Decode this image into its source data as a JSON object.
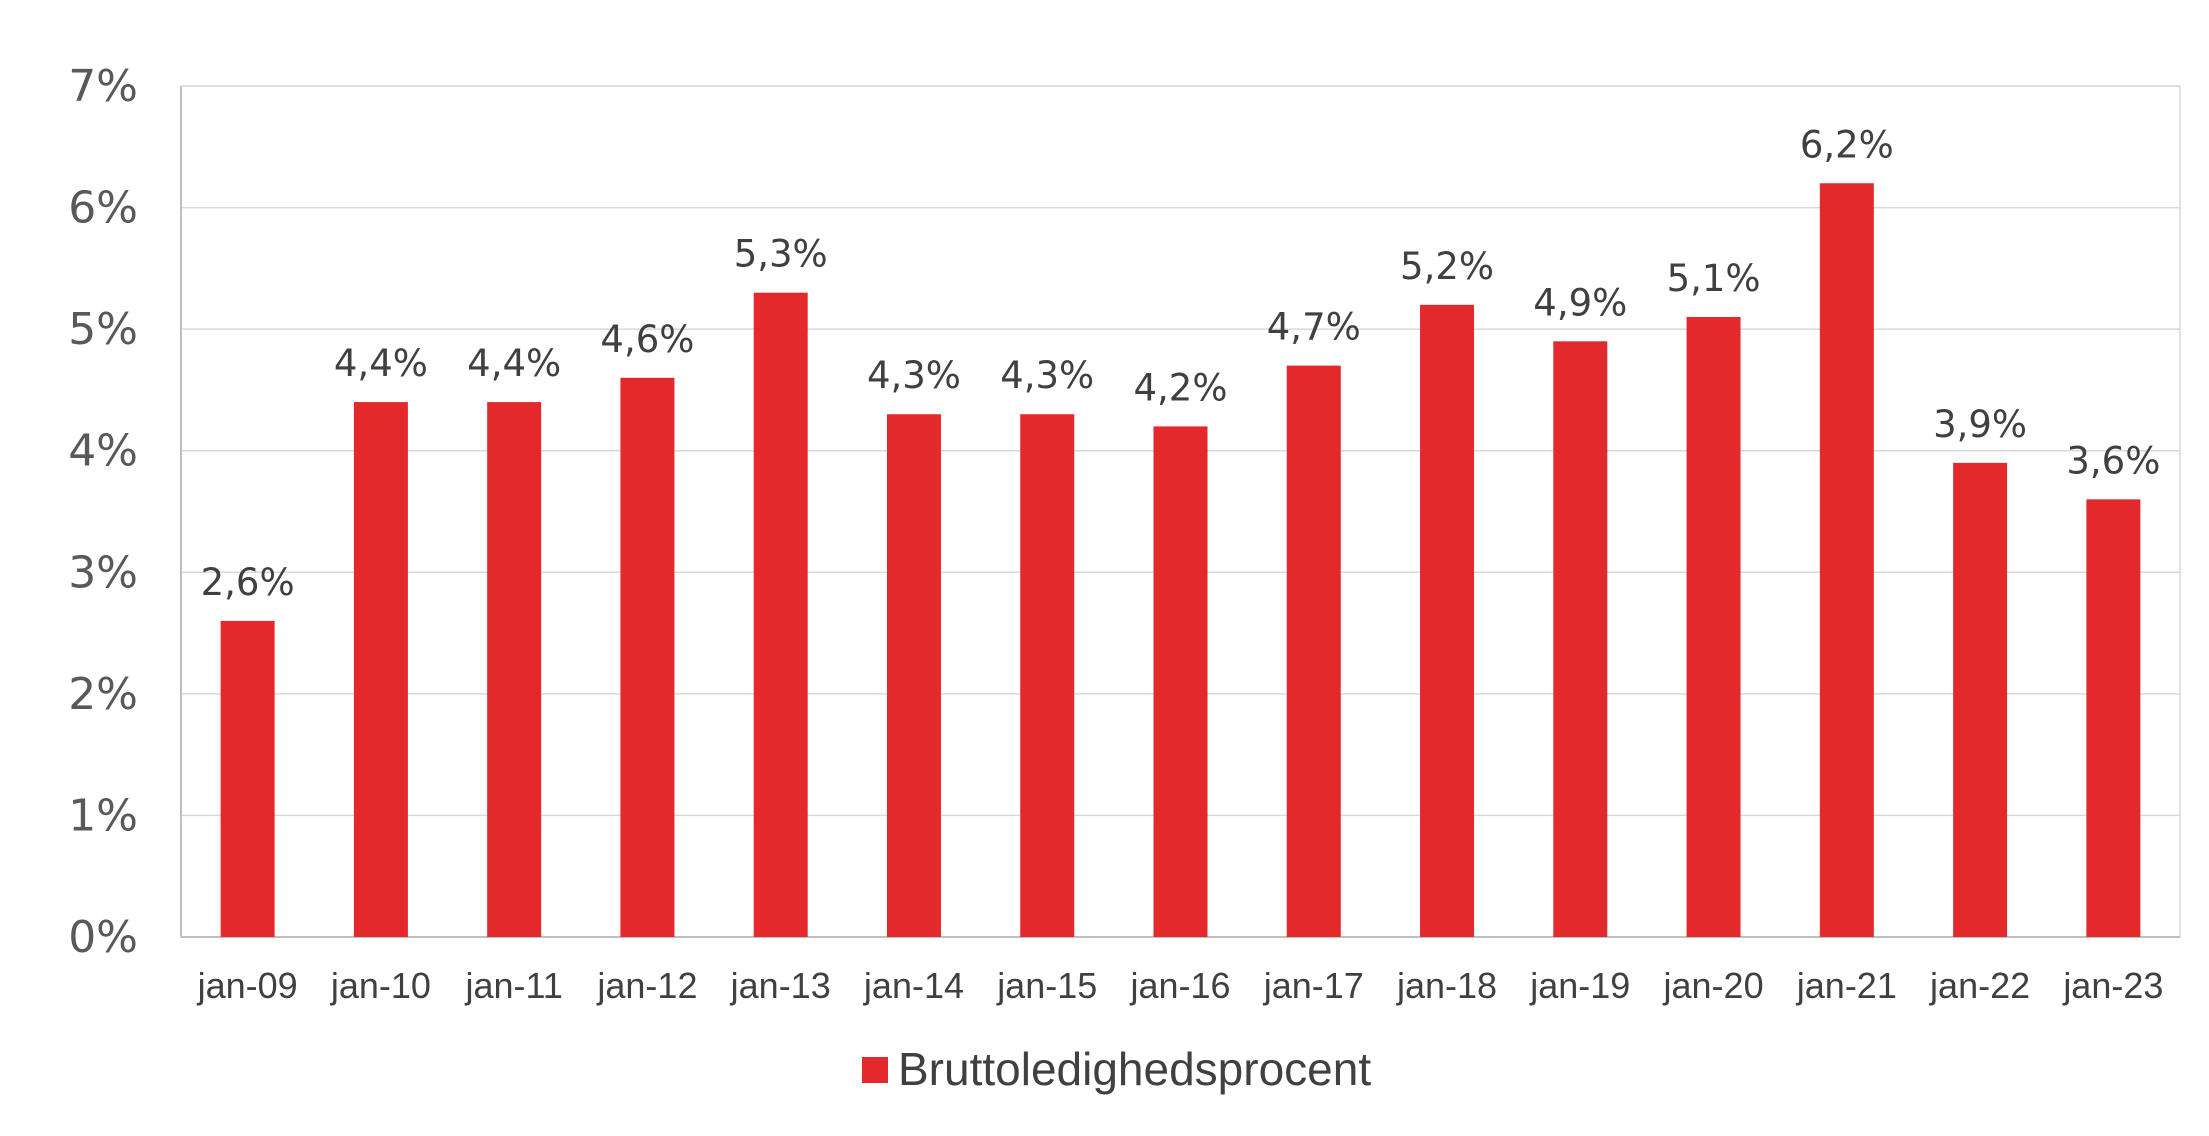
{
  "chart_data": {
    "type": "bar",
    "categories": [
      "jan-09",
      "jan-10",
      "jan-11",
      "jan-12",
      "jan-13",
      "jan-14",
      "jan-15",
      "jan-16",
      "jan-17",
      "jan-18",
      "jan-19",
      "jan-20",
      "jan-21",
      "jan-22",
      "jan-23"
    ],
    "series": [
      {
        "name": "Bruttoledighedsprocent",
        "values": [
          2.6,
          4.4,
          4.4,
          4.6,
          5.3,
          4.3,
          4.3,
          4.2,
          4.7,
          5.2,
          4.9,
          5.1,
          6.2,
          3.9,
          3.6
        ],
        "data_labels": [
          "2,6%",
          "4,4%",
          "4,4%",
          "4,6%",
          "5,3%",
          "4,3%",
          "4,3%",
          "4,2%",
          "4,7%",
          "5,2%",
          "4,9%",
          "5,1%",
          "6,2%",
          "3,9%",
          "3,6%"
        ],
        "color": "#E4292D"
      }
    ],
    "y_ticks": [
      0,
      1,
      2,
      3,
      4,
      5,
      6,
      7
    ],
    "y_tick_labels": [
      "0%",
      "1%",
      "2%",
      "3%",
      "4%",
      "5%",
      "6%",
      "7%"
    ],
    "ylim": [
      0,
      7
    ],
    "grid": true,
    "legend_position": "bottom-center",
    "colors": {
      "bar": "#E4292D",
      "grid": "#D9D9D9",
      "axis": "#BFBFBF"
    }
  }
}
